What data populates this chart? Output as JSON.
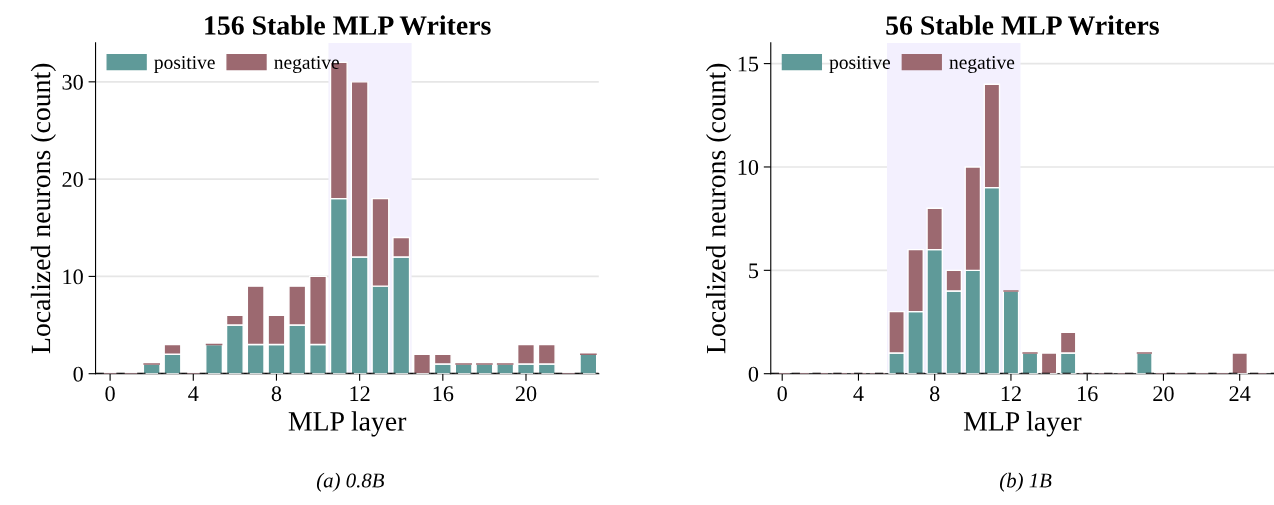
{
  "chart_data": [
    {
      "type": "bar",
      "title": "156 Stable MLP Writers",
      "xlabel": "MLP layer",
      "ylabel": "Localized neurons (count)",
      "stacked": true,
      "x": [
        0,
        1,
        2,
        3,
        4,
        5,
        6,
        7,
        8,
        9,
        10,
        11,
        12,
        13,
        14,
        15,
        16,
        17,
        18,
        19,
        20,
        21,
        22,
        23
      ],
      "series": [
        {
          "name": "positive",
          "color": "#5f9a99",
          "values": [
            0,
            0,
            1,
            2,
            0,
            3,
            5,
            3,
            3,
            5,
            3,
            18,
            12,
            9,
            12,
            0,
            1,
            1,
            1,
            1,
            1,
            1,
            0,
            2
          ]
        },
        {
          "name": "negative",
          "color": "#9c6970",
          "values": [
            0,
            0,
            0,
            1,
            0,
            0,
            1,
            6,
            3,
            4,
            7,
            14,
            18,
            9,
            2,
            2,
            1,
            0,
            0,
            0,
            2,
            2,
            0,
            0
          ]
        }
      ],
      "xlim": [
        -0.7,
        23.5
      ],
      "xticks": [
        0,
        4,
        8,
        12,
        16,
        20
      ],
      "ylim": [
        0,
        34
      ],
      "yticks": [
        0,
        10,
        20,
        30
      ],
      "bands": [
        {
          "axis": "x",
          "from": 10.5,
          "to": 14.5,
          "color": "#f3f0fe"
        }
      ],
      "ref_lines": [
        {
          "axis": "y",
          "value": 0,
          "color": "#000000",
          "line_style": "dashed"
        }
      ],
      "grid": "y",
      "legend": "top left",
      "annotations": [
        "(a) 0.8B"
      ]
    },
    {
      "type": "bar",
      "title": "56 Stable MLP Writers",
      "xlabel": "MLP layer",
      "ylabel": "Localized neurons (count)",
      "stacked": true,
      "x": [
        0,
        1,
        2,
        3,
        4,
        5,
        6,
        7,
        8,
        9,
        10,
        11,
        12,
        13,
        14,
        15,
        16,
        17,
        18,
        19,
        20,
        21,
        22,
        23,
        24,
        25
      ],
      "series": [
        {
          "name": "positive",
          "color": "#5f9a99",
          "values": [
            0,
            0,
            0,
            0,
            0,
            0,
            1,
            3,
            6,
            4,
            5,
            9,
            4,
            1,
            0,
            1,
            0,
            0,
            0,
            1,
            0,
            0,
            0,
            0,
            0,
            0
          ]
        },
        {
          "name": "negative",
          "color": "#9c6970",
          "values": [
            0,
            0,
            0,
            0,
            0,
            0,
            2,
            3,
            2,
            1,
            5,
            5,
            0,
            0,
            1,
            1,
            0,
            0,
            0,
            0,
            0,
            0,
            0,
            0,
            1,
            0
          ]
        }
      ],
      "xlim": [
        -0.6,
        25.8
      ],
      "xticks": [
        0,
        4,
        8,
        12,
        16,
        20,
        24
      ],
      "ylim": [
        0,
        16
      ],
      "yticks": [
        0,
        5,
        10,
        15
      ],
      "bands": [
        {
          "axis": "x",
          "from": 5.5,
          "to": 12.5,
          "color": "#f3f0fe"
        }
      ],
      "ref_lines": [
        {
          "axis": "y",
          "value": 0,
          "color": "#000000",
          "line_style": "dashed"
        }
      ],
      "grid": "y",
      "legend": "top left",
      "annotations": [
        "(b) 1B"
      ]
    }
  ]
}
